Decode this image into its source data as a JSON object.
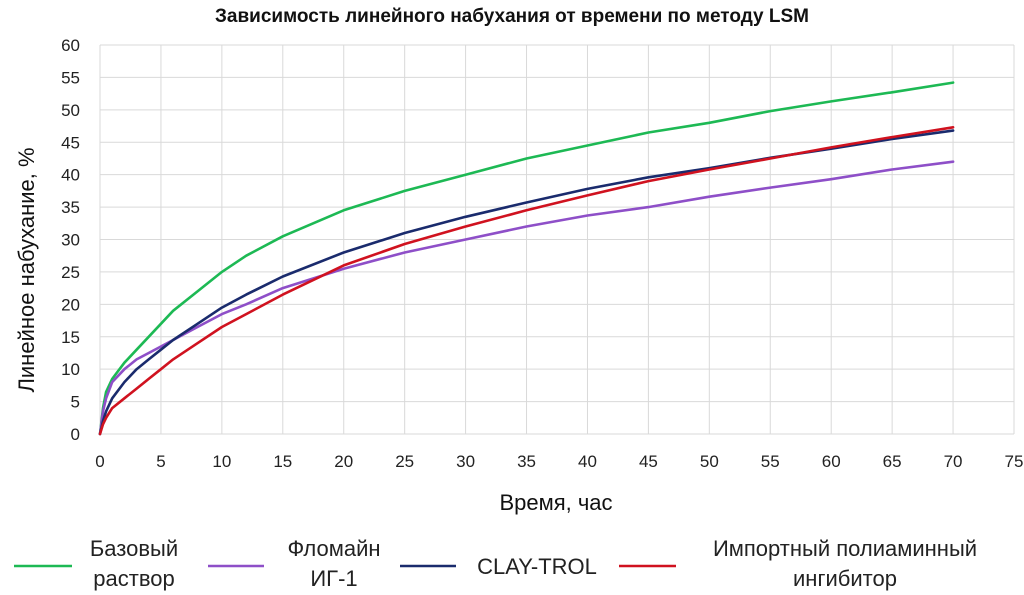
{
  "chart_data": {
    "type": "line",
    "title": "Зависимость линейного набухания от времени по методу LSM",
    "xlabel": "Время, час",
    "ylabel": "Линейное набухание, %",
    "xlim": [
      0,
      75
    ],
    "ylim": [
      0,
      60
    ],
    "xticks": [
      0,
      5,
      10,
      15,
      20,
      25,
      30,
      35,
      40,
      45,
      50,
      55,
      60,
      65,
      70,
      75
    ],
    "yticks": [
      0,
      5,
      10,
      15,
      20,
      25,
      30,
      35,
      40,
      45,
      50,
      55,
      60
    ],
    "grid": true,
    "legend_position": "bottom",
    "series": [
      {
        "name": "Базовый раствор",
        "color": "#1db954",
        "x": [
          0,
          0.25,
          0.5,
          1,
          2,
          3,
          4,
          5,
          6,
          8,
          10,
          12,
          15,
          20,
          25,
          30,
          35,
          40,
          45,
          50,
          55,
          60,
          65,
          70
        ],
        "y": [
          0,
          4,
          6.5,
          8.5,
          11,
          13,
          15,
          17,
          19,
          22,
          25,
          27.5,
          30.5,
          34.5,
          37.5,
          40,
          42.5,
          44.5,
          46.5,
          48,
          49.8,
          51.3,
          52.7,
          54.2
        ]
      },
      {
        "name": "Фломайн ИГ-1",
        "color": "#8e4fc8",
        "x": [
          0,
          0.25,
          0.5,
          1,
          2,
          3,
          4,
          5,
          6,
          8,
          10,
          12,
          15,
          20,
          25,
          30,
          35,
          40,
          45,
          50,
          55,
          60,
          65,
          70
        ],
        "y": [
          0,
          3.5,
          5.5,
          8,
          10,
          11.5,
          12.5,
          13.5,
          14.5,
          16.5,
          18.5,
          20,
          22.5,
          25.5,
          28,
          30,
          32,
          33.7,
          35,
          36.6,
          38,
          39.3,
          40.8,
          42
        ]
      },
      {
        "name": "CLAY-TROL",
        "color": "#1a2b6d",
        "x": [
          0,
          0.25,
          0.5,
          1,
          2,
          3,
          4,
          5,
          6,
          8,
          10,
          12,
          15,
          20,
          25,
          30,
          35,
          40,
          45,
          50,
          55,
          60,
          65,
          70
        ],
        "y": [
          0,
          2,
          3.5,
          5.5,
          8,
          10,
          11.5,
          13,
          14.5,
          17,
          19.5,
          21.5,
          24.3,
          28,
          31,
          33.5,
          35.7,
          37.8,
          39.6,
          41,
          42.6,
          44,
          45.5,
          46.8
        ]
      },
      {
        "name": "Импортный полиаминный ингибитор",
        "color": "#d0121f",
        "x": [
          0,
          0.25,
          0.5,
          1,
          2,
          3,
          4,
          5,
          6,
          8,
          10,
          12,
          15,
          20,
          25,
          30,
          35,
          40,
          45,
          50,
          55,
          60,
          65,
          70
        ],
        "y": [
          0,
          1.5,
          2.5,
          4,
          5.5,
          7,
          8.5,
          10,
          11.5,
          14,
          16.5,
          18.5,
          21.5,
          26,
          29.3,
          32,
          34.5,
          36.8,
          39,
          40.8,
          42.5,
          44.2,
          45.8,
          47.3
        ]
      }
    ],
    "legend": [
      {
        "color": "#1db954",
        "lines": [
          "Базовый",
          "раствор"
        ]
      },
      {
        "color": "#8e4fc8",
        "lines": [
          "Фломайн",
          "ИГ-1"
        ]
      },
      {
        "color": "#1a2b6d",
        "lines": [
          "CLAY-TROL"
        ]
      },
      {
        "color": "#d0121f",
        "lines": [
          "Импортный полиаминный",
          "ингибитор"
        ]
      }
    ]
  }
}
